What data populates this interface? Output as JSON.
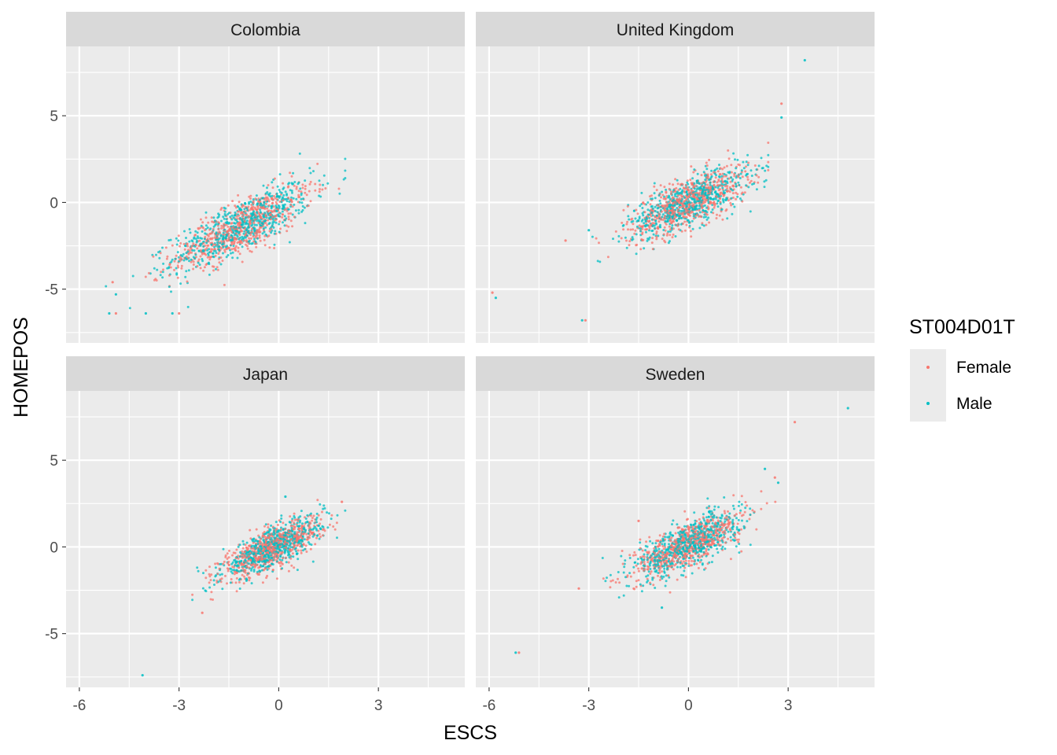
{
  "chart_data": {
    "type": "scatter",
    "facet_grid": "2x2",
    "xlabel": "ESCS",
    "ylabel": "HOMEPOS",
    "xlim": [
      -6.4,
      5.6
    ],
    "ylim": [
      -8.1,
      9.0
    ],
    "x_ticks": [
      -6,
      -3,
      0,
      3
    ],
    "y_ticks": [
      -5,
      0,
      5
    ],
    "legend": {
      "title": "ST004D01T",
      "placement": "right",
      "entries": [
        {
          "label": "Female",
          "color": "#F8766D"
        },
        {
          "label": "Male",
          "color": "#00BFC4"
        }
      ]
    },
    "panels": [
      {
        "name": "Colombia",
        "cloud": {
          "x_range": [
            -5.2,
            2.0
          ],
          "slope": 0.93,
          "intercept": -0.35,
          "x_mean": -1.1,
          "x_sd": 1.05,
          "y_sd": 0.75
        },
        "outliers": [
          [
            -5.1,
            -6.4
          ],
          [
            -4.9,
            -6.4
          ],
          [
            -3.2,
            -6.4
          ],
          [
            -3.0,
            -6.4
          ],
          [
            -4.0,
            -6.4
          ],
          [
            -5.0,
            -4.6
          ],
          [
            -4.9,
            -5.3
          ]
        ]
      },
      {
        "name": "United Kingdom",
        "cloud": {
          "x_range": [
            -4.0,
            2.4
          ],
          "slope": 0.8,
          "intercept": 0.0,
          "x_mean": 0.0,
          "x_sd": 0.9,
          "y_sd": 0.7
        },
        "outliers": [
          [
            3.5,
            8.2
          ],
          [
            2.8,
            5.7
          ],
          [
            2.8,
            4.9
          ],
          [
            -5.9,
            -5.2
          ],
          [
            -5.8,
            -5.5
          ],
          [
            -3.1,
            -6.8
          ],
          [
            -3.2,
            -6.8
          ],
          [
            -3.7,
            -2.2
          ],
          [
            -3.0,
            -1.6
          ]
        ]
      },
      {
        "name": "Japan",
        "cloud": {
          "x_range": [
            -2.6,
            2.0
          ],
          "slope": 0.9,
          "intercept": 0.1,
          "x_mean": -0.2,
          "x_sd": 0.75,
          "y_sd": 0.55
        },
        "outliers": [
          [
            -4.1,
            -7.4
          ],
          [
            -2.3,
            -3.8
          ],
          [
            0.2,
            2.9
          ],
          [
            1.9,
            2.6
          ]
        ]
      },
      {
        "name": "Sweden",
        "cloud": {
          "x_range": [
            -4.0,
            2.7
          ],
          "slope": 0.85,
          "intercept": 0.15,
          "x_mean": 0.0,
          "x_sd": 0.8,
          "y_sd": 0.65
        },
        "outliers": [
          [
            4.8,
            8.0
          ],
          [
            3.2,
            7.2
          ],
          [
            -5.2,
            -6.1
          ],
          [
            -5.1,
            -6.1
          ],
          [
            2.3,
            4.5
          ],
          [
            2.6,
            4.0
          ],
          [
            2.7,
            3.7
          ],
          [
            -3.3,
            -2.4
          ],
          [
            -0.8,
            -3.5
          ],
          [
            -1.5,
            1.5
          ]
        ]
      }
    ]
  }
}
